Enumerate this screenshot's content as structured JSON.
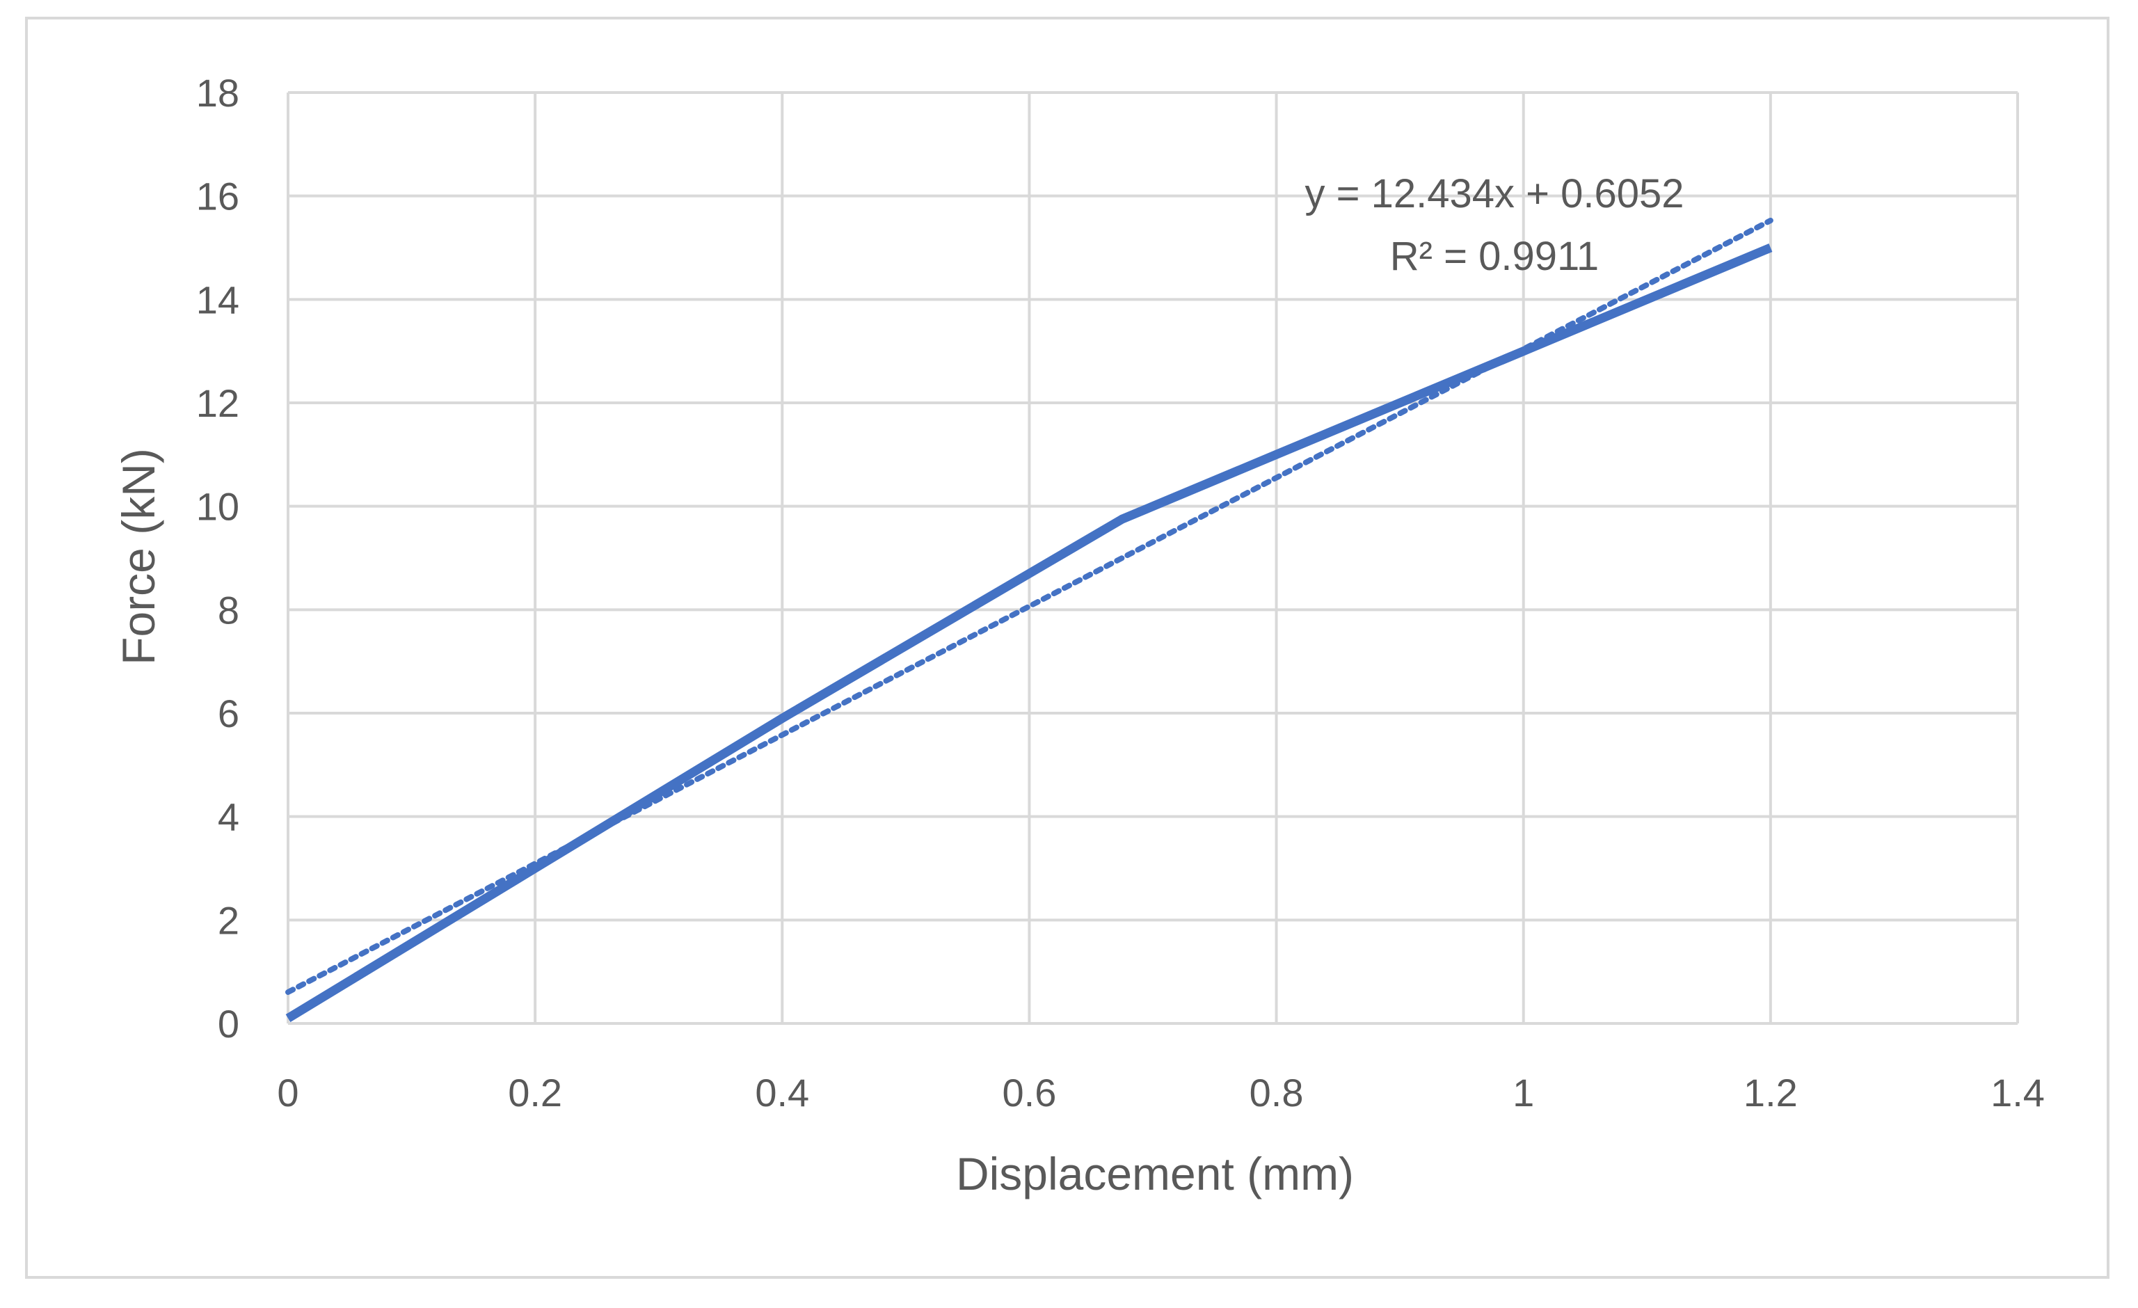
{
  "chart_data": {
    "type": "line",
    "title": "",
    "xlabel": "Displacement (mm)",
    "ylabel": "Force (kN)",
    "xlim": [
      0,
      1.4
    ],
    "ylim": [
      0,
      18
    ],
    "xticks": [
      0,
      0.2,
      0.4,
      0.6,
      0.8,
      1,
      1.2,
      1.4
    ],
    "xtick_labels": [
      "0",
      "0.2",
      "0.4",
      "0.6",
      "0.8",
      "1",
      "1.2",
      "1.4"
    ],
    "yticks": [
      0,
      2,
      4,
      6,
      8,
      10,
      12,
      14,
      16,
      18
    ],
    "ytick_labels": [
      "0",
      "2",
      "4",
      "6",
      "8",
      "10",
      "12",
      "14",
      "16",
      "18"
    ],
    "grid": true,
    "legend": "none",
    "series": [
      {
        "style": "solid",
        "color": "#4472c4",
        "x": [
          0,
          0.2,
          0.4,
          0.6,
          0.675,
          0.8,
          1.0,
          1.2
        ],
        "y": [
          0.1,
          3.0,
          5.9,
          8.7,
          9.75,
          11.0,
          13.0,
          15.0
        ]
      }
    ],
    "trendline": {
      "type": "linear",
      "style": "dotted",
      "color": "#4472c4",
      "slope": 12.434,
      "intercept": 0.6052,
      "x_range": [
        0,
        1.2
      ],
      "equation": "y = 12.434x + 0.6052",
      "r2_label": "R² = 0.9911"
    },
    "colors": {
      "gridline": "#d9d9d9",
      "text": "#595959",
      "border": "#d9d9d9"
    }
  }
}
